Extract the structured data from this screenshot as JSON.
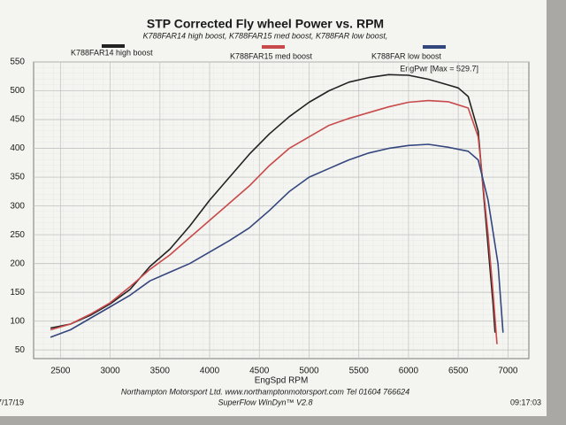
{
  "chart_data": {
    "type": "line",
    "title": "STP Corrected Fly wheel Power vs. RPM",
    "subtitle": "K788FAR14 high boost, K788FAR15 med boost, K788FAR low boost,",
    "annotation": "EngPwr [Max = 529.7]",
    "x_label": "EngSpd  RPM",
    "footer": "Northampton Motorsport Ltd.  www.northamptonmotorsport.com  Tel 01604 766624",
    "software": "SuperFlow WinDyn™ V2.8",
    "date": "7/17/19",
    "time": "09:17:03",
    "xlim": [
      2230,
      7210
    ],
    "ylim": [
      35,
      550
    ],
    "xticks": [
      2500,
      3000,
      3500,
      4000,
      4500,
      5000,
      5500,
      6000,
      6500,
      7000
    ],
    "yticks": [
      50,
      100,
      150,
      200,
      250,
      300,
      350,
      400,
      450,
      500,
      550
    ],
    "grid": true,
    "series": [
      {
        "name": "K788FAR14 high boost",
        "color": "#222222",
        "x": [
          2400,
          2600,
          2800,
          3000,
          3200,
          3400,
          3600,
          3800,
          4000,
          4200,
          4400,
          4600,
          4800,
          5000,
          5200,
          5400,
          5600,
          5800,
          6000,
          6200,
          6400,
          6500,
          6600,
          6700,
          6800,
          6850,
          6870
        ],
        "values": [
          88,
          95,
          110,
          130,
          155,
          195,
          225,
          265,
          310,
          350,
          390,
          425,
          455,
          480,
          500,
          515,
          523,
          528,
          527,
          520,
          510,
          505,
          490,
          430,
          230,
          130,
          80
        ]
      },
      {
        "name": "K788FAR15 med boost",
        "color": "#c84a4a",
        "x": [
          2400,
          2600,
          2800,
          3000,
          3200,
          3400,
          3600,
          3800,
          4000,
          4200,
          4400,
          4600,
          4800,
          5000,
          5200,
          5400,
          5600,
          5800,
          6000,
          6200,
          6400,
          6600,
          6700,
          6800,
          6850,
          6890
        ],
        "values": [
          85,
          95,
          112,
          132,
          160,
          190,
          215,
          245,
          275,
          305,
          335,
          370,
          400,
          420,
          440,
          452,
          462,
          472,
          480,
          483,
          481,
          470,
          420,
          250,
          150,
          60
        ]
      },
      {
        "name": "K788FAR low boost",
        "color": "#34467e",
        "x": [
          2400,
          2600,
          2800,
          3000,
          3200,
          3400,
          3600,
          3800,
          4000,
          4200,
          4400,
          4600,
          4800,
          5000,
          5200,
          5400,
          5600,
          5800,
          6000,
          6200,
          6400,
          6600,
          6700,
          6800,
          6900,
          6950
        ],
        "values": [
          72,
          85,
          105,
          125,
          145,
          170,
          185,
          200,
          220,
          240,
          262,
          292,
          325,
          350,
          365,
          380,
          392,
          400,
          405,
          407,
          402,
          395,
          380,
          310,
          200,
          80
        ]
      }
    ]
  }
}
